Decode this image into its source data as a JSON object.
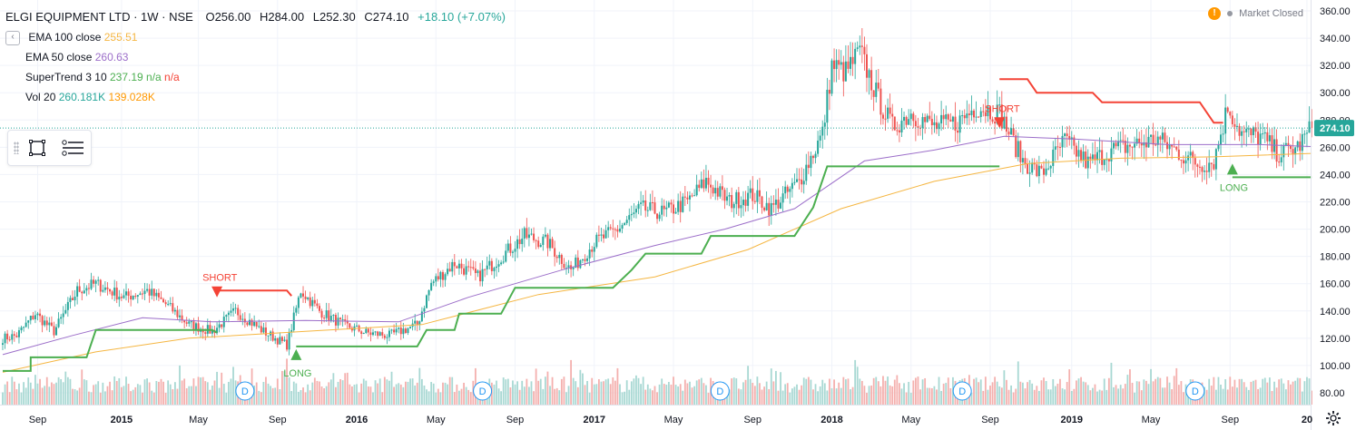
{
  "header": {
    "symbol": "ELGI EQUIPMENT LTD · 1W · NSE",
    "open": "O256.00",
    "high": "H284.00",
    "low": "L252.30",
    "close": "C274.10",
    "change": "+18.10 (+7.07%)",
    "market_status": "Market Closed"
  },
  "indicators": {
    "ema100": {
      "label": "EMA 100 close",
      "value": "255.51",
      "color": "#f5b642"
    },
    "ema50": {
      "label": "EMA 50 close",
      "value": "260.63",
      "color": "#9c6ec9"
    },
    "supertrend": {
      "label": "SuperTrend 3 10",
      "value": "237.19",
      "na1": "n/a",
      "na2": "n/a",
      "up_color": "#4caf50",
      "down_color": "#f44336"
    },
    "volume": {
      "label": "Vol 20",
      "value": "260.181K",
      "ma": "139.028K"
    }
  },
  "toolbar": {
    "rect_tool_icon": "rectangle-icon",
    "menu_icon": "list-settings-icon"
  },
  "chart_data": {
    "type": "candlestick",
    "title": "ELGI EQUIPMENT LTD · 1W · NSE",
    "y_ticks": [
      80,
      100,
      120,
      140,
      160,
      180,
      200,
      220,
      240,
      260,
      280,
      300,
      320,
      340,
      360
    ],
    "ylim": [
      76,
      364
    ],
    "x_ticks": [
      "Sep",
      "2015",
      "May",
      "Sep",
      "2016",
      "May",
      "Sep",
      "2017",
      "May",
      "Sep",
      "2018",
      "May",
      "Sep",
      "2019",
      "May",
      "Sep",
      "20"
    ],
    "last_price": 274.1,
    "colors": {
      "up": "#26a69a",
      "down": "#ef5350",
      "vol_up": "#a8d8d3",
      "vol_down": "#f4b0ae",
      "grid": "#f0f3fa"
    },
    "price_anchors": [
      [
        0,
        120
      ],
      [
        6,
        122
      ],
      [
        14,
        138
      ],
      [
        22,
        125
      ],
      [
        32,
        155
      ],
      [
        40,
        160
      ],
      [
        52,
        150
      ],
      [
        62,
        155
      ],
      [
        70,
        145
      ],
      [
        80,
        130
      ],
      [
        90,
        125
      ],
      [
        100,
        140
      ],
      [
        112,
        125
      ],
      [
        122,
        115
      ],
      [
        128,
        155
      ],
      [
        136,
        140
      ],
      [
        146,
        130
      ],
      [
        156,
        124
      ],
      [
        166,
        122
      ],
      [
        178,
        130
      ],
      [
        184,
        160
      ],
      [
        194,
        175
      ],
      [
        204,
        165
      ],
      [
        214,
        180
      ],
      [
        224,
        195
      ],
      [
        234,
        190
      ],
      [
        244,
        170
      ],
      [
        254,
        190
      ],
      [
        264,
        200
      ],
      [
        274,
        215
      ],
      [
        284,
        212
      ],
      [
        294,
        220
      ],
      [
        302,
        235
      ],
      [
        312,
        220
      ],
      [
        322,
        225
      ],
      [
        330,
        215
      ],
      [
        342,
        235
      ],
      [
        352,
        270
      ],
      [
        356,
        320
      ],
      [
        362,
        315
      ],
      [
        368,
        330
      ],
      [
        376,
        295
      ],
      [
        382,
        275
      ],
      [
        390,
        285
      ],
      [
        400,
        275
      ],
      [
        410,
        278
      ],
      [
        418,
        290
      ],
      [
        428,
        285
      ],
      [
        438,
        250
      ],
      [
        446,
        240
      ],
      [
        456,
        265
      ],
      [
        466,
        248
      ],
      [
        476,
        258
      ],
      [
        486,
        262
      ],
      [
        496,
        266
      ],
      [
        506,
        255
      ],
      [
        514,
        247
      ],
      [
        520,
        250
      ],
      [
        526,
        290
      ],
      [
        532,
        270
      ],
      [
        540,
        268
      ],
      [
        548,
        255
      ],
      [
        556,
        260
      ],
      [
        562,
        274
      ]
    ],
    "volume_spikes": [
      [
        76,
        100
      ],
      [
        120,
        96
      ],
      [
        244,
        104
      ],
      [
        264,
        98
      ],
      [
        366,
        104
      ],
      [
        436,
        103
      ],
      [
        476,
        102
      ],
      [
        504,
        98
      ],
      [
        122,
        105
      ]
    ],
    "ema50_points": [
      [
        0,
        108
      ],
      [
        30,
        122
      ],
      [
        60,
        135
      ],
      [
        90,
        132
      ],
      [
        130,
        133
      ],
      [
        170,
        132
      ],
      [
        200,
        150
      ],
      [
        240,
        170
      ],
      [
        280,
        188
      ],
      [
        310,
        200
      ],
      [
        340,
        215
      ],
      [
        370,
        250
      ],
      [
        400,
        258
      ],
      [
        430,
        268
      ],
      [
        460,
        266
      ],
      [
        500,
        262
      ],
      [
        540,
        262
      ],
      [
        562,
        260.6
      ]
    ],
    "ema100_points": [
      [
        0,
        95
      ],
      [
        40,
        110
      ],
      [
        80,
        120
      ],
      [
        130,
        125
      ],
      [
        180,
        130
      ],
      [
        230,
        152
      ],
      [
        280,
        165
      ],
      [
        320,
        185
      ],
      [
        360,
        215
      ],
      [
        400,
        235
      ],
      [
        440,
        248
      ],
      [
        480,
        252
      ],
      [
        520,
        253
      ],
      [
        562,
        255.5
      ]
    ],
    "supertrend_segments": [
      {
        "dir": "up",
        "points": [
          [
            0,
            96
          ],
          [
            12,
            96
          ],
          [
            12,
            106
          ],
          [
            36,
            106
          ],
          [
            40,
            126
          ],
          [
            90,
            126
          ],
          [
            92,
            124
          ]
        ]
      },
      {
        "dir": "down",
        "points": [
          [
            92,
            155
          ],
          [
            122,
            155
          ],
          [
            124,
            151
          ]
        ]
      },
      {
        "dir": "up",
        "points": [
          [
            126,
            114
          ],
          [
            178,
            114
          ],
          [
            182,
            126
          ],
          [
            194,
            126
          ],
          [
            196,
            138
          ],
          [
            214,
            138
          ],
          [
            220,
            157
          ],
          [
            262,
            157
          ],
          [
            270,
            170
          ],
          [
            276,
            182
          ],
          [
            300,
            182
          ],
          [
            304,
            195
          ],
          [
            340,
            195
          ],
          [
            348,
            216
          ],
          [
            354,
            246
          ],
          [
            428,
            246
          ]
        ]
      },
      {
        "dir": "down",
        "points": [
          [
            428,
            310
          ],
          [
            440,
            310
          ],
          [
            444,
            300
          ],
          [
            468,
            300
          ],
          [
            472,
            293
          ],
          [
            514,
            293
          ],
          [
            520,
            278
          ],
          [
            524,
            278
          ]
        ]
      },
      {
        "dir": "up",
        "points": [
          [
            528,
            238
          ],
          [
            562,
            238
          ]
        ]
      }
    ],
    "signals": [
      {
        "type": "SHORT",
        "at": 92,
        "price": 158
      },
      {
        "type": "LONG",
        "at": 126,
        "price": 104
      },
      {
        "type": "SHORT",
        "at": 428,
        "price": 282
      },
      {
        "type": "LONG",
        "at": 528,
        "price": 240
      }
    ],
    "dividends": [
      104,
      206,
      308,
      412,
      512
    ],
    "dividend_label": "D"
  }
}
